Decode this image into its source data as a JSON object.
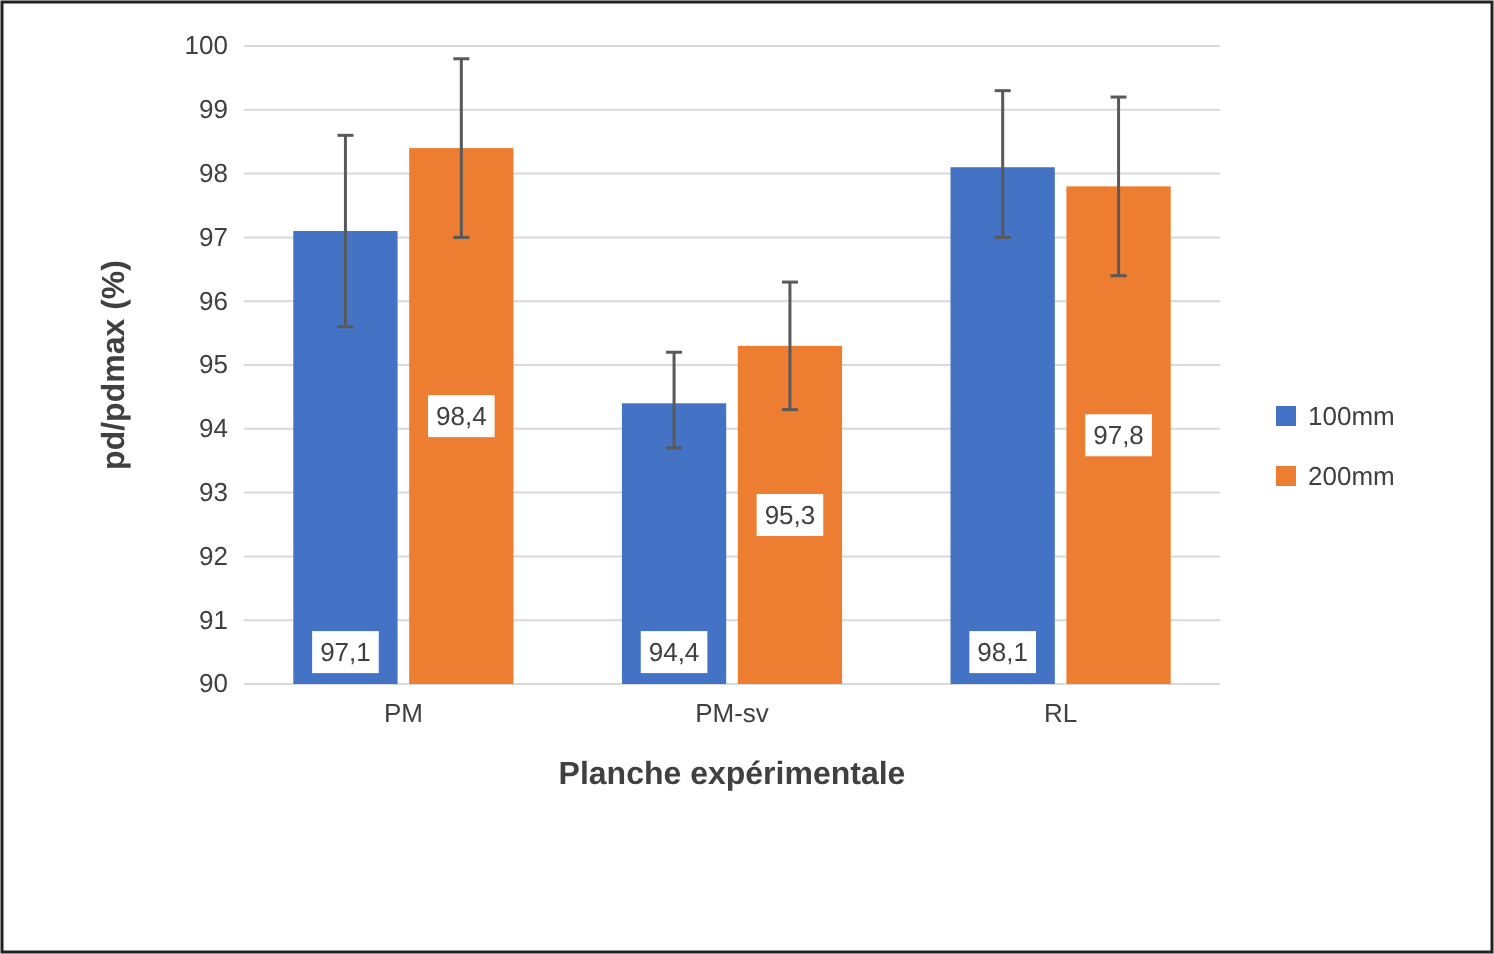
{
  "chart_data": {
    "type": "bar",
    "xlabel": "Planche expérimentale",
    "ylabel": "pd/pdmax (%)",
    "categories": [
      "PM",
      "PM-sv",
      "RL"
    ],
    "series": [
      {
        "name": "100mm",
        "color": "#4472c4",
        "values": [
          97.1,
          94.4,
          98.1
        ],
        "value_labels": [
          "97,1",
          "94,4",
          "98,1"
        ],
        "errors": [
          [
            95.6,
            98.6
          ],
          [
            93.7,
            95.2
          ],
          [
            97.0,
            99.3
          ]
        ]
      },
      {
        "name": "200mm",
        "color": "#ed7d31",
        "values": [
          98.4,
          95.3,
          97.8
        ],
        "value_labels": [
          "98,4",
          "95,3",
          "97,8"
        ],
        "errors": [
          [
            97.0,
            99.8
          ],
          [
            94.3,
            96.3
          ],
          [
            96.4,
            99.2
          ]
        ]
      }
    ],
    "ylim": [
      90,
      100
    ],
    "yticks": [
      90,
      91,
      92,
      93,
      94,
      95,
      96,
      97,
      98,
      99,
      100
    ],
    "grid": "y",
    "legend": "right"
  }
}
